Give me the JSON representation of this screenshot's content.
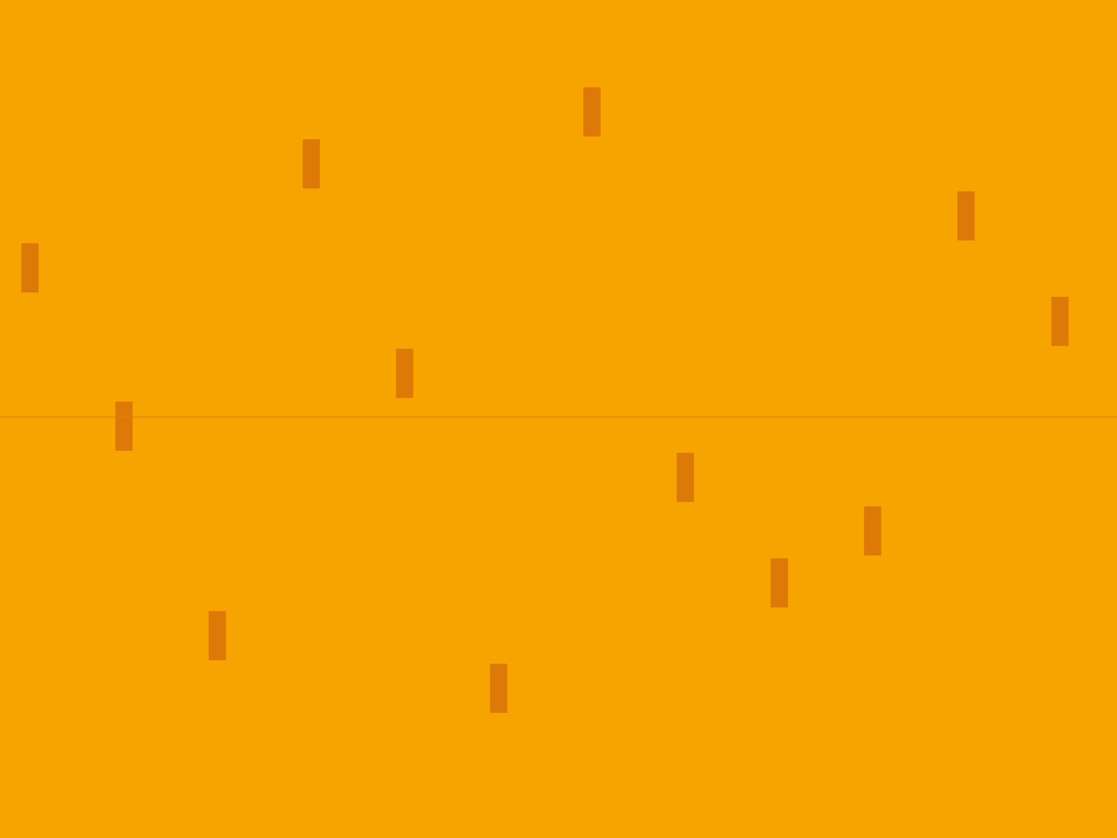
{
  "chart_data": {
    "type": "scatter",
    "xlim": [
      0,
      1568
    ],
    "ylim": [
      0,
      1176
    ],
    "tick_labels": false,
    "grid": false,
    "series": [
      {
        "type": "scatter",
        "marker": "line-ns",
        "color": "#c8560c",
        "x": [
          831,
          437,
          1356,
          42,
          1488,
          568,
          174,
          962,
          1225,
          1094,
          305,
          700
        ],
        "values": [
          1019,
          946,
          873,
          800,
          725,
          652,
          578,
          506,
          431,
          358,
          284,
          210
        ]
      },
      {
        "type": "line",
        "line_style": "solid",
        "color": "#e88200",
        "x": [
          0,
          1568
        ],
        "values": [
          591,
          591
        ]
      }
    ]
  }
}
